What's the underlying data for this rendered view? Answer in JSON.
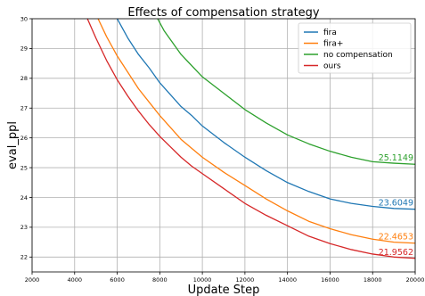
{
  "chart_data": {
    "type": "line",
    "title": "Effects of compensation strategy",
    "xlabel": "Update Step",
    "ylabel": "eval_ppl",
    "xlim": [
      2000,
      20000
    ],
    "ylim": [
      21.5,
      30
    ],
    "xticks": [
      2000,
      4000,
      6000,
      8000,
      10000,
      12000,
      14000,
      16000,
      18000,
      20000
    ],
    "yticks": [
      22,
      23,
      24,
      25,
      26,
      27,
      28,
      29,
      30
    ],
    "grid": true,
    "legend_position": "top-right",
    "series": [
      {
        "name": "fira",
        "color": "#1f77b4",
        "end_label": "23.6049",
        "x": [
          6000,
          6500,
          7000,
          7500,
          8000,
          8500,
          9000,
          9500,
          10000,
          11000,
          12000,
          13000,
          14000,
          15000,
          16000,
          17000,
          18000,
          19000,
          20000
        ],
        "y": [
          30.0,
          29.35,
          28.8,
          28.35,
          27.85,
          27.45,
          27.05,
          26.75,
          26.4,
          25.85,
          25.35,
          24.9,
          24.5,
          24.2,
          23.95,
          23.8,
          23.7,
          23.63,
          23.6049
        ]
      },
      {
        "name": "fira+",
        "color": "#ff7f0e",
        "end_label": "22.4653",
        "x": [
          5100,
          5500,
          6000,
          6500,
          7000,
          7500,
          8000,
          8500,
          9000,
          9500,
          10000,
          11000,
          12000,
          13000,
          14000,
          15000,
          16000,
          17000,
          18000,
          19000,
          20000
        ],
        "y": [
          30.0,
          29.4,
          28.75,
          28.2,
          27.65,
          27.2,
          26.75,
          26.35,
          25.95,
          25.65,
          25.35,
          24.85,
          24.4,
          23.95,
          23.55,
          23.2,
          22.95,
          22.75,
          22.6,
          22.5,
          22.4653
        ]
      },
      {
        "name": "no compensation",
        "color": "#2ca02c",
        "end_label": "25.1149",
        "x": [
          7900,
          8200,
          8600,
          9000,
          9400,
          9800,
          10000,
          11000,
          12000,
          13000,
          14000,
          15000,
          16000,
          17000,
          18000,
          19000,
          20000
        ],
        "y": [
          30.0,
          29.6,
          29.2,
          28.8,
          28.5,
          28.2,
          28.05,
          27.5,
          26.95,
          26.5,
          26.1,
          25.8,
          25.55,
          25.35,
          25.2,
          25.15,
          25.1149
        ]
      },
      {
        "name": "ours",
        "color": "#d62728",
        "end_label": "21.9562",
        "x": [
          4600,
          5000,
          5500,
          6000,
          6500,
          7000,
          7500,
          8000,
          8500,
          9000,
          9500,
          10000,
          11000,
          12000,
          13000,
          14000,
          15000,
          16000,
          17000,
          18000,
          19000,
          20000
        ],
        "y": [
          30.0,
          29.35,
          28.6,
          27.95,
          27.4,
          26.9,
          26.45,
          26.05,
          25.7,
          25.35,
          25.05,
          24.8,
          24.3,
          23.8,
          23.4,
          23.05,
          22.7,
          22.45,
          22.25,
          22.1,
          22.0,
          21.9562
        ]
      }
    ]
  }
}
